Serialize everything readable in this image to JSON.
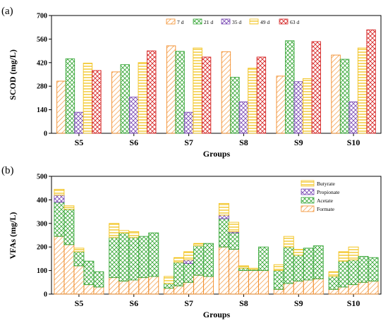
{
  "chart_data": [
    {
      "panel": "(a)",
      "type": "bar",
      "xlabel": "Groups",
      "ylabel": "SCOD (mg/L)",
      "ylim": [
        0,
        700
      ],
      "yticks": [
        0,
        140,
        280,
        420,
        560,
        700
      ],
      "categories": [
        "S5",
        "S6",
        "S7",
        "S8",
        "S9",
        "S10"
      ],
      "legend_position": "top-right",
      "series": [
        {
          "name": "7 d",
          "color": "#f28c28",
          "pattern": "hatch-diag",
          "values": [
            310,
            365,
            520,
            485,
            340,
            465
          ]
        },
        {
          "name": "21 d",
          "color": "#3aa83a",
          "pattern": "hatch-cross",
          "values": [
            443,
            408,
            487,
            333,
            550,
            440
          ]
        },
        {
          "name": "35 d",
          "color": "#7b4bb5",
          "pattern": "hatch-cross",
          "values": [
            125,
            215,
            125,
            187,
            307,
            187
          ]
        },
        {
          "name": "49 d",
          "color": "#f2c21b",
          "pattern": "hatch-horiz",
          "values": [
            417,
            420,
            507,
            387,
            325,
            507
          ]
        },
        {
          "name": "63 d",
          "color": "#d62828",
          "pattern": "hatch-cross",
          "values": [
            373,
            490,
            453,
            453,
            545,
            615
          ]
        }
      ]
    },
    {
      "panel": "(b)",
      "type": "bar",
      "stacked": true,
      "xlabel": "Groups",
      "ylabel": "VFAs (mg/L)",
      "ylim": [
        0,
        500
      ],
      "yticks": [
        0,
        100,
        200,
        300,
        400,
        500
      ],
      "categories": [
        "S5",
        "S6",
        "S7",
        "S8",
        "S9",
        "S10"
      ],
      "bars_per_category": 5,
      "legend_position": "top-right",
      "series": [
        {
          "name": "Formate",
          "color": "#f28c28",
          "pattern": "hatch-diag",
          "values": [
            [
              245,
              210,
              120,
              40,
              30
            ],
            [
              70,
              55,
              60,
              70,
              75
            ],
            [
              25,
              35,
              50,
              80,
              75
            ],
            [
              200,
              190,
              100,
              100,
              100
            ],
            [
              20,
              45,
              55,
              60,
              65
            ],
            [
              20,
              30,
              40,
              50,
              55
            ]
          ]
        },
        {
          "name": "Acetate",
          "color": "#3aa83a",
          "pattern": "hatch-cross",
          "values": [
            [
              145,
              150,
              60,
              100,
              65
            ],
            [
              170,
              205,
              180,
              175,
              185
            ],
            [
              20,
              100,
              80,
              125,
              140
            ],
            [
              120,
              70,
              10,
              5,
              100
            ],
            [
              80,
              155,
              110,
              135,
              140
            ],
            [
              55,
              110,
              105,
              110,
              100
            ]
          ]
        },
        {
          "name": "Propionate",
          "color": "#7b4bb5",
          "pattern": "hatch-cross",
          "values": [
            [
              30,
              0,
              0,
              0,
              0
            ],
            [
              0,
              0,
              0,
              0,
              0
            ],
            [
              0,
              0,
              15,
              0,
              0
            ],
            [
              15,
              5,
              0,
              0,
              0
            ],
            [
              0,
              0,
              0,
              0,
              0
            ],
            [
              0,
              0,
              0,
              0,
              0
            ]
          ]
        },
        {
          "name": "Butyrate",
          "color": "#f2c21b",
          "pattern": "hatch-horiz",
          "values": [
            [
              25,
              15,
              15,
              0,
              0
            ],
            [
              60,
              10,
              25,
              0,
              0
            ],
            [
              30,
              20,
              35,
              10,
              0
            ],
            [
              50,
              40,
              10,
              5,
              0
            ],
            [
              25,
              45,
              25,
              0,
              0
            ],
            [
              20,
              40,
              55,
              0,
              0
            ]
          ]
        }
      ]
    }
  ]
}
